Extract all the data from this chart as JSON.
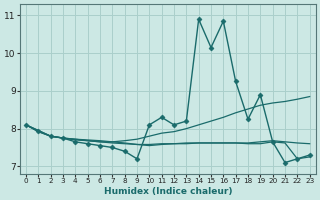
{
  "xlabel": "Humidex (Indice chaleur)",
  "xlim": [
    -0.5,
    23.5
  ],
  "ylim": [
    6.8,
    11.3
  ],
  "yticks": [
    7,
    8,
    9,
    10,
    11
  ],
  "xticks": [
    0,
    1,
    2,
    3,
    4,
    5,
    6,
    7,
    8,
    9,
    10,
    11,
    12,
    13,
    14,
    15,
    16,
    17,
    18,
    19,
    20,
    21,
    22,
    23
  ],
  "bg_color": "#cce8e4",
  "grid_color": "#aacfcb",
  "line_color": "#1a6b6b",
  "line1_x": [
    0,
    1,
    2,
    3,
    4,
    5,
    6,
    7,
    8,
    9,
    10,
    11,
    12,
    13,
    14,
    15,
    16,
    17,
    18,
    19,
    20,
    21,
    22,
    23
  ],
  "line1_y": [
    8.1,
    7.95,
    7.8,
    7.75,
    7.65,
    7.6,
    7.55,
    7.5,
    7.4,
    7.2,
    8.1,
    8.3,
    8.1,
    8.2,
    10.9,
    10.15,
    10.85,
    9.25,
    8.25,
    8.9,
    7.65,
    7.1,
    7.2,
    7.3
  ],
  "line2_x": [
    0,
    1,
    2,
    3,
    4,
    5,
    6,
    7,
    8,
    9,
    10,
    11,
    12,
    13,
    14,
    15,
    16,
    17,
    18,
    19,
    20,
    21,
    22,
    23
  ],
  "line2_y": [
    8.1,
    7.95,
    7.8,
    7.75,
    7.7,
    7.68,
    7.65,
    7.65,
    7.68,
    7.72,
    7.8,
    7.88,
    7.92,
    8.0,
    8.1,
    8.2,
    8.3,
    8.42,
    8.52,
    8.62,
    8.68,
    8.72,
    8.78,
    8.85
  ],
  "line3_x": [
    0,
    1,
    2,
    3,
    4,
    5,
    6,
    7,
    8,
    9,
    10,
    11,
    12,
    13,
    14,
    15,
    16,
    17,
    18,
    19,
    20,
    21,
    22,
    23
  ],
  "line3_y": [
    8.1,
    7.92,
    7.8,
    7.75,
    7.72,
    7.68,
    7.65,
    7.62,
    7.6,
    7.58,
    7.58,
    7.6,
    7.6,
    7.6,
    7.62,
    7.62,
    7.62,
    7.62,
    7.6,
    7.6,
    7.65,
    7.62,
    7.2,
    7.25
  ],
  "line4_x": [
    0,
    1,
    2,
    3,
    4,
    5,
    6,
    7,
    8,
    9,
    10,
    11,
    12,
    13,
    14,
    15,
    16,
    17,
    18,
    19,
    20,
    21,
    22,
    23
  ],
  "line4_y": [
    8.1,
    7.92,
    7.8,
    7.75,
    7.72,
    7.7,
    7.68,
    7.65,
    7.62,
    7.58,
    7.55,
    7.58,
    7.6,
    7.62,
    7.62,
    7.62,
    7.62,
    7.62,
    7.62,
    7.65,
    7.68,
    7.65,
    7.62,
    7.6
  ]
}
